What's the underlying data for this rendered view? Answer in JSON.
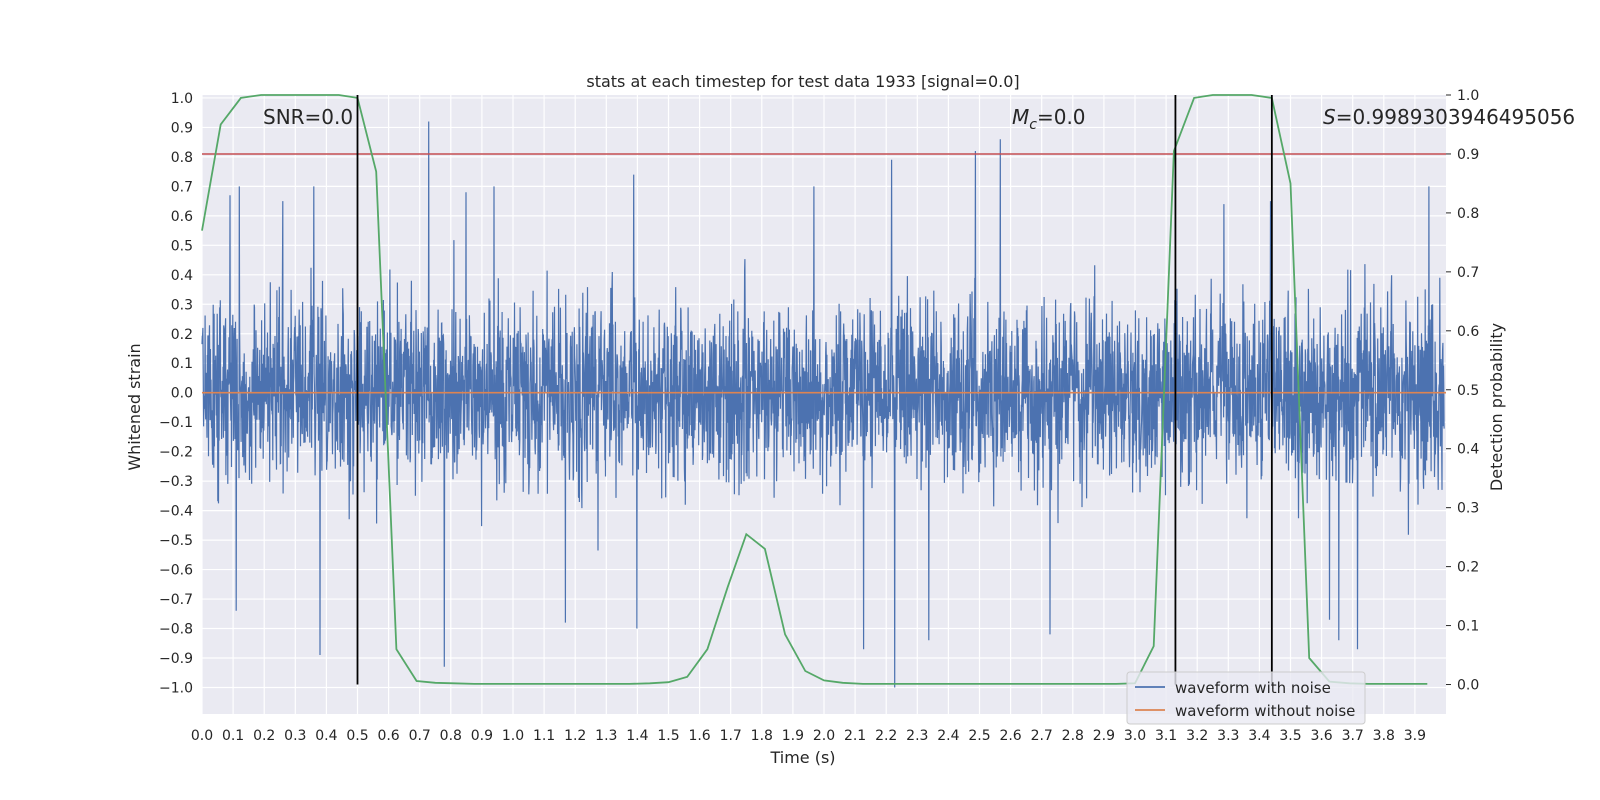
{
  "chart_data": {
    "type": "line",
    "title": "stats at each timestep for test data 1933 [signal=0.0]",
    "xlabel": "Time (s)",
    "ylabel": "Whitened strain",
    "y2label": "Detection probability",
    "xlim": [
      0.0,
      4.0
    ],
    "ylim": [
      -1.09,
      1.01
    ],
    "y2lim": [
      -0.05,
      1.0
    ],
    "xticks": [
      "0.0",
      "0.1",
      "0.2",
      "0.3",
      "0.4",
      "0.5",
      "0.6",
      "0.7",
      "0.8",
      "0.9",
      "1.0",
      "1.1",
      "1.2",
      "1.3",
      "1.4",
      "1.5",
      "1.6",
      "1.7",
      "1.8",
      "1.9",
      "2.0",
      "2.1",
      "2.2",
      "2.3",
      "2.4",
      "2.5",
      "2.6",
      "2.7",
      "2.8",
      "2.9",
      "3.0",
      "3.1",
      "3.2",
      "3.3",
      "3.4",
      "3.5",
      "3.6",
      "3.7",
      "3.8",
      "3.9"
    ],
    "yticks": [
      "1.0",
      "0.9",
      "0.8",
      "0.7",
      "0.6",
      "0.5",
      "0.4",
      "0.3",
      "0.2",
      "0.1",
      "0.0",
      "−0.1",
      "−0.2",
      "−0.3",
      "−0.4",
      "−0.5",
      "−0.6",
      "−0.7",
      "−0.8",
      "−0.9",
      "−1.0"
    ],
    "y2ticks": [
      "1.0",
      "0.9",
      "0.8",
      "0.7",
      "0.6",
      "0.5",
      "0.4",
      "0.3",
      "0.2",
      "0.1",
      "0.0"
    ],
    "threshold": 0.9,
    "vlines": [
      0.5,
      3.13,
      3.44
    ],
    "annotations": {
      "snr": "SNR=0.0",
      "mc_symbol": "M",
      "mc_sub": "c",
      "mc_value": "=0.0",
      "s_symbol": "S",
      "s_value": "=0.9989303946495056"
    },
    "series": [
      {
        "name": "waveform with noise",
        "color": "#4c72b0",
        "note": "dense whitened noise, roughly within ±0.5 with spikes up to 0.92 and down to −1.0",
        "peaks": [
          [
            0.09,
            0.67
          ],
          [
            0.11,
            0.68
          ],
          [
            0.12,
            0.7
          ],
          [
            0.26,
            0.65
          ],
          [
            0.36,
            0.7
          ],
          [
            0.73,
            0.92
          ],
          [
            0.85,
            0.68
          ],
          [
            0.94,
            0.7
          ],
          [
            1.39,
            0.74
          ],
          [
            1.97,
            0.7
          ],
          [
            2.22,
            0.79
          ],
          [
            2.49,
            0.82
          ],
          [
            2.57,
            0.86
          ],
          [
            3.29,
            0.64
          ],
          [
            3.44,
            0.65
          ],
          [
            3.95,
            0.7
          ]
        ],
        "troughs": [
          [
            0.11,
            -0.74
          ],
          [
            0.38,
            -0.89
          ],
          [
            0.78,
            -0.93
          ],
          [
            1.17,
            -0.78
          ],
          [
            1.4,
            -0.8
          ],
          [
            2.13,
            -0.87
          ],
          [
            2.23,
            -1.0
          ],
          [
            2.34,
            -0.84
          ],
          [
            2.73,
            -0.82
          ],
          [
            3.63,
            -0.77
          ],
          [
            3.66,
            -0.84
          ],
          [
            3.72,
            -0.87
          ]
        ]
      },
      {
        "name": "waveform without noise",
        "color": "#dd8452",
        "x": [
          0.0,
          4.0
        ],
        "y": [
          0.0,
          0.0
        ]
      },
      {
        "name": "detection probability",
        "color": "#55a868",
        "axis": "right",
        "x": [
          0.0,
          0.06,
          0.125,
          0.19,
          0.25,
          0.31,
          0.375,
          0.44,
          0.5,
          0.56,
          0.625,
          0.69,
          0.75,
          0.81,
          0.875,
          0.94,
          1.0,
          1.06,
          1.125,
          1.19,
          1.25,
          1.31,
          1.375,
          1.44,
          1.5,
          1.56,
          1.625,
          1.69,
          1.75,
          1.81,
          1.875,
          1.94,
          2.0,
          2.06,
          2.125,
          2.19,
          2.25,
          2.31,
          2.375,
          2.44,
          2.5,
          2.56,
          2.625,
          2.69,
          2.75,
          2.81,
          2.875,
          2.94,
          3.0,
          3.06,
          3.125,
          3.19,
          3.25,
          3.31,
          3.375,
          3.44,
          3.5,
          3.56,
          3.625,
          3.69,
          3.75,
          3.81,
          3.875,
          3.94
        ],
        "y": [
          0.77,
          0.95,
          0.995,
          1.0,
          1.0,
          1.0,
          1.0,
          1.0,
          0.995,
          0.87,
          0.06,
          0.006,
          0.003,
          0.002,
          0.001,
          0.001,
          0.001,
          0.001,
          0.001,
          0.001,
          0.001,
          0.001,
          0.001,
          0.002,
          0.004,
          0.013,
          0.06,
          0.165,
          0.255,
          0.23,
          0.085,
          0.023,
          0.007,
          0.003,
          0.001,
          0.001,
          0.001,
          0.001,
          0.001,
          0.001,
          0.001,
          0.001,
          0.001,
          0.001,
          0.001,
          0.001,
          0.001,
          0.001,
          0.002,
          0.065,
          0.905,
          0.995,
          1.0,
          1.0,
          1.0,
          0.995,
          0.85,
          0.045,
          0.005,
          0.002,
          0.001,
          0.001,
          0.001,
          0.001
        ]
      }
    ],
    "legend": {
      "location": "lower right",
      "entries": [
        "waveform with noise",
        "waveform without noise"
      ]
    }
  }
}
